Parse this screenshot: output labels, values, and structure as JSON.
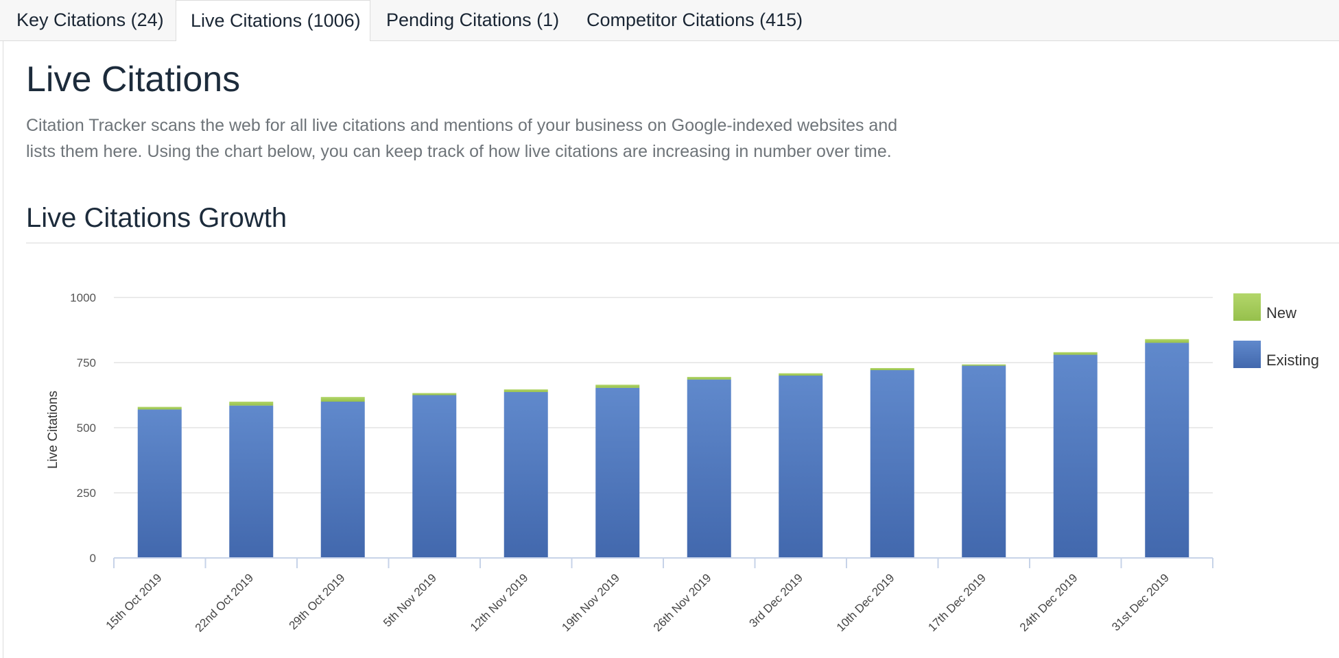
{
  "tabs": [
    {
      "label": "Key Citations (24)",
      "active": false
    },
    {
      "label": "Live Citations (1006)",
      "active": true
    },
    {
      "label": "Pending Citations (1)",
      "active": false
    },
    {
      "label": "Competitor Citations (415)",
      "active": false
    }
  ],
  "page": {
    "title": "Live Citations",
    "description": "Citation Tracker scans the web for all live citations and mentions of your business on Google-indexed websites and lists them here. Using the chart below, you can keep track of how live citations are increasing in number over time.",
    "section_title": "Live Citations Growth"
  },
  "colors": {
    "existing": "#4d73b8",
    "new": "#a4c95a",
    "grid": "#e3e3e3",
    "axis": "#c7d3e8"
  },
  "chart_data": {
    "type": "bar",
    "stacked": true,
    "title": "",
    "xlabel": "",
    "ylabel": "Live Citations",
    "ylim": [
      0,
      1000
    ],
    "yticks": [
      0,
      250,
      500,
      750,
      1000
    ],
    "grid": true,
    "legend_position": "right",
    "categories": [
      "15th Oct 2019",
      "22nd Oct 2019",
      "29th Oct 2019",
      "5th Nov 2019",
      "12th Nov 2019",
      "19th Nov 2019",
      "26th Nov 2019",
      "3rd Dec 2019",
      "10th Dec 2019",
      "17th Dec 2019",
      "24th Dec 2019",
      "31st Dec 2019"
    ],
    "series": [
      {
        "name": "Existing",
        "values": [
          570,
          585,
          600,
          625,
          637,
          653,
          685,
          700,
          721,
          738,
          780,
          826
        ]
      },
      {
        "name": "New",
        "values": [
          10,
          15,
          18,
          8,
          10,
          12,
          10,
          9,
          8,
          5,
          10,
          14
        ]
      }
    ],
    "legend": [
      "New",
      "Existing"
    ]
  }
}
